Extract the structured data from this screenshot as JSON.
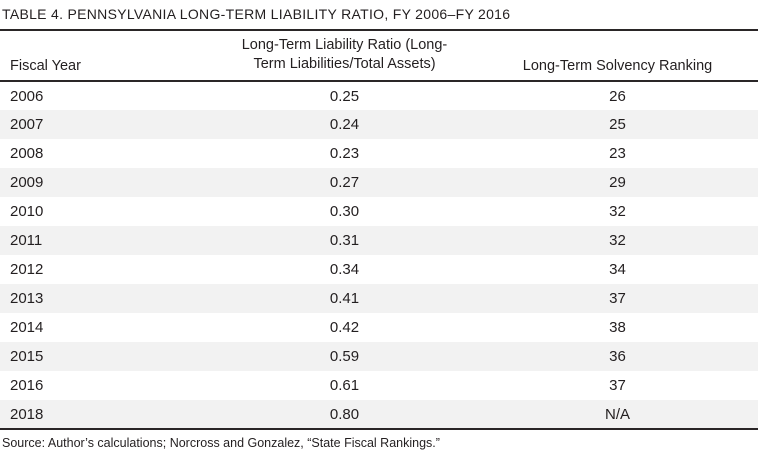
{
  "title": "TABLE 4. PENNSYLVANIA LONG-TERM LIABILITY RATIO, FY 2006–FY 2016",
  "table": {
    "columns": {
      "fiscal_year": "Fiscal Year",
      "ratio_line1": "Long-Term Liability Ratio (Long-",
      "ratio_line2": "Term Liabilities/Total Assets)",
      "ranking": "Long-Term Solvency Ranking"
    },
    "rows": [
      {
        "fiscal_year": "2006",
        "ratio": "0.25",
        "ranking": "26"
      },
      {
        "fiscal_year": "2007",
        "ratio": "0.24",
        "ranking": "25"
      },
      {
        "fiscal_year": "2008",
        "ratio": "0.23",
        "ranking": "23"
      },
      {
        "fiscal_year": "2009",
        "ratio": "0.27",
        "ranking": "29"
      },
      {
        "fiscal_year": "2010",
        "ratio": "0.30",
        "ranking": "32"
      },
      {
        "fiscal_year": "2011",
        "ratio": "0.31",
        "ranking": "32"
      },
      {
        "fiscal_year": "2012",
        "ratio": "0.34",
        "ranking": "34"
      },
      {
        "fiscal_year": "2013",
        "ratio": "0.41",
        "ranking": "37"
      },
      {
        "fiscal_year": "2014",
        "ratio": "0.42",
        "ranking": "38"
      },
      {
        "fiscal_year": "2015",
        "ratio": "0.59",
        "ranking": "36"
      },
      {
        "fiscal_year": "2016",
        "ratio": "0.61",
        "ranking": "37"
      },
      {
        "fiscal_year": "2018",
        "ratio": "0.80",
        "ranking": "N/A"
      }
    ]
  },
  "source": "Source: Author’s calculations; Norcross and Gonzalez, “State Fiscal Rankings.”",
  "colors": {
    "text": "#231f20",
    "rule": "#2a2627",
    "stripe": "#f2f2f2",
    "background": "#ffffff"
  }
}
